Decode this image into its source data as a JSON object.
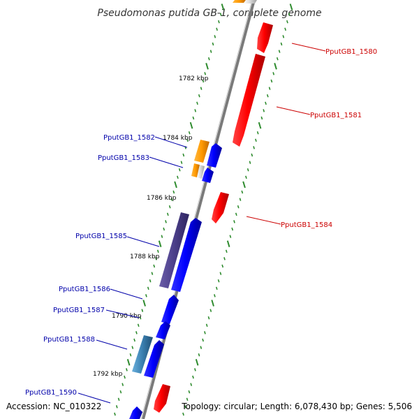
{
  "title": "Pseudomonas putida GB-1, complete genome",
  "colors": {
    "backbone": "#7a7a7a",
    "tick": "#2e8b2e",
    "forward_gene": "#0000ff",
    "reverse_gene": "#ff0000",
    "reverse_label": "#cc0000",
    "forward_label": "#0000aa",
    "orange_feature": "#ff9900",
    "purple_feature": "#4b3f8a",
    "teal_feature": "#3a7fb0"
  },
  "scale_labels": [
    "1782 kbp",
    "1784 kbp",
    "1786 kbp",
    "1788 kbp",
    "1790 kbp",
    "1792 kbp"
  ],
  "gene_labels": {
    "g1580": "PputGB1_1580",
    "g1581": "PputGB1_1581",
    "g1582": "PputGB1_1582",
    "g1583": "PputGB1_1583",
    "g1584": "PputGB1_1584",
    "g1585": "PputGB1_1585",
    "g1586": "PputGB1_1586",
    "g1587": "PputGB1_1587",
    "g1588": "PputGB1_1588",
    "g1590": "PputGB1_1590"
  },
  "footer": {
    "accession": "Accession: NC_010322",
    "summary": "Topology: circular; Length: 6,078,430 bp; Genes: 5,506"
  }
}
